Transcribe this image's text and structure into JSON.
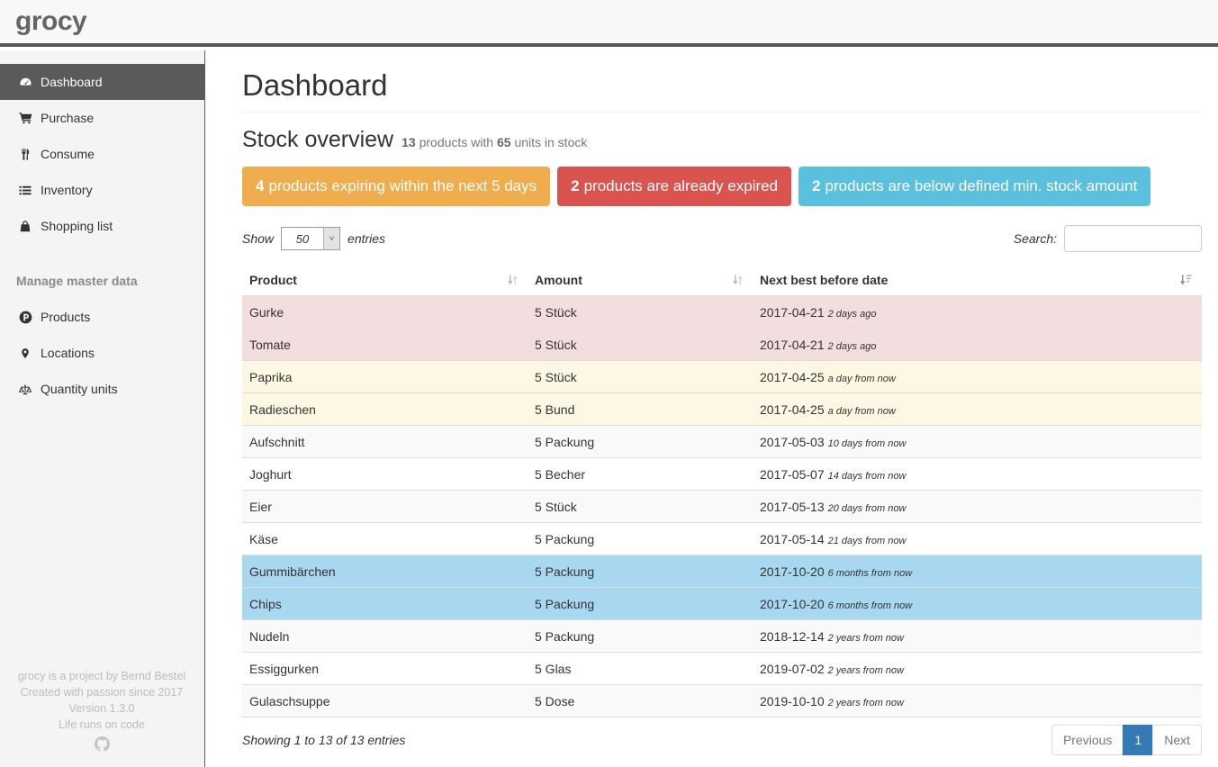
{
  "navbar": {
    "logo": "grocy"
  },
  "sidebar": {
    "items": [
      {
        "label": "Dashboard",
        "icon": "tachometer",
        "active": true
      },
      {
        "label": "Purchase",
        "icon": "shopping-cart",
        "active": false
      },
      {
        "label": "Consume",
        "icon": "utensils",
        "active": false
      },
      {
        "label": "Inventory",
        "icon": "list",
        "active": false
      },
      {
        "label": "Shopping list",
        "icon": "shopping-bag",
        "active": false
      }
    ],
    "section_header": "Manage master data",
    "master_items": [
      {
        "label": "Products",
        "icon": "product-hunt",
        "active": false
      },
      {
        "label": "Locations",
        "icon": "map-marker",
        "active": false
      },
      {
        "label": "Quantity units",
        "icon": "balance-scale",
        "active": false
      }
    ],
    "footer_lines": [
      "grocy is a project by Bernd Bestel",
      "Created with passion since 2017",
      "Version 1.3.0",
      "Life runs on code"
    ],
    "footer_icon": "github"
  },
  "main": {
    "page_title": "Dashboard",
    "section": {
      "title": "Stock overview",
      "products_count": "13",
      "text_mid": "products with",
      "units_count": "65",
      "text_end": "units in stock"
    },
    "badges": [
      {
        "count": "4",
        "text": "products expiring within the next 5 days",
        "color": "#f0ad4e"
      },
      {
        "count": "2",
        "text": "products are already expired",
        "color": "#d9534f"
      },
      {
        "count": "2",
        "text": "products are below defined min. stock amount",
        "color": "#5bc0de"
      }
    ],
    "table_controls": {
      "show_label": "Show",
      "page_size": "50",
      "entries_label": "entries",
      "search_label": "Search:",
      "search_value": ""
    },
    "table": {
      "columns": [
        "Product",
        "Amount",
        "Next best before date"
      ],
      "sort_icons": [
        "unsorted",
        "unsorted",
        "sorted-amount"
      ],
      "rows": [
        {
          "product": "Gurke",
          "amount": "5 Stück",
          "date": "2017-04-21",
          "note": "2 days ago",
          "status": "danger"
        },
        {
          "product": "Tomate",
          "amount": "5 Stück",
          "date": "2017-04-21",
          "note": "2 days ago",
          "status": "danger"
        },
        {
          "product": "Paprika",
          "amount": "5 Stück",
          "date": "2017-04-25",
          "note": "a day from now",
          "status": "warning"
        },
        {
          "product": "Radieschen",
          "amount": "5 Bund",
          "date": "2017-04-25",
          "note": "a day from now",
          "status": "warning"
        },
        {
          "product": "Aufschnitt",
          "amount": "5 Packung",
          "date": "2017-05-03",
          "note": "10 days from now",
          "status": "none"
        },
        {
          "product": "Joghurt",
          "amount": "5 Becher",
          "date": "2017-05-07",
          "note": "14 days from now",
          "status": "none"
        },
        {
          "product": "Eier",
          "amount": "5 Stück",
          "date": "2017-05-13",
          "note": "20 days from now",
          "status": "none"
        },
        {
          "product": "Käse",
          "amount": "5 Packung",
          "date": "2017-05-14",
          "note": "21 days from now",
          "status": "none"
        },
        {
          "product": "Gummibärchen",
          "amount": "5 Packung",
          "date": "2017-10-20",
          "note": "6 months from now",
          "status": "info"
        },
        {
          "product": "Chips",
          "amount": "5 Packung",
          "date": "2017-10-20",
          "note": "6 months from now",
          "status": "info"
        },
        {
          "product": "Nudeln",
          "amount": "5 Packung",
          "date": "2018-12-14",
          "note": "2 years from now",
          "status": "none"
        },
        {
          "product": "Essiggurken",
          "amount": "5 Glas",
          "date": "2019-07-02",
          "note": "2 years from now",
          "status": "none"
        },
        {
          "product": "Gulaschsuppe",
          "amount": "5 Dose",
          "date": "2019-10-10",
          "note": "2 years from now",
          "status": "none"
        }
      ]
    },
    "table_footer": {
      "info": "Showing 1 to 13 of 13 entries",
      "pagination": {
        "previous": "Previous",
        "current": "1",
        "next": "Next"
      }
    }
  },
  "colors": {
    "badge_warning": "#f0ad4e",
    "badge_danger": "#d9534f",
    "badge_info": "#5bc0de",
    "row_danger": "#f2dede",
    "row_warning": "#fcf8e3",
    "row_info": "#a8d8f0",
    "row_stripe": "#f9f9f9",
    "pagination_active": "#337ab7",
    "navbar_border": "#575757",
    "sidebar_active": "#5a5a5a"
  }
}
